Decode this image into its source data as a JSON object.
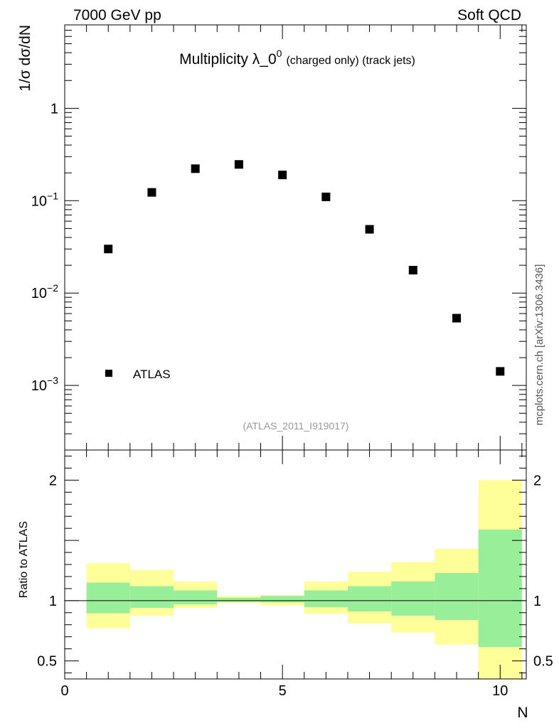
{
  "header": {
    "left_label": "7000 GeV pp",
    "right_label": "Soft QCD"
  },
  "side_label": "mcplots.cern.ch [arXiv:1306.3436]",
  "chart_data": [
    {
      "type": "scatter",
      "title_main": "Multiplicity λ_0",
      "title_sup": "0",
      "title_suffix": "(charged only) (track jets)",
      "ylabel": "1/σ dσ/dN",
      "analysis_id": "(ATLAS_2011_I919017)",
      "yscale": "log",
      "xlim": [
        0,
        10.6
      ],
      "ylim": [
        0.0002,
        8
      ],
      "y_ticks": [
        {
          "value": 0.001,
          "base": "10",
          "exp": "−3"
        },
        {
          "value": 0.01,
          "base": "10",
          "exp": "−2"
        },
        {
          "value": 0.1,
          "base": "10",
          "exp": "−1"
        },
        {
          "value": 1,
          "base": "1",
          "exp": ""
        }
      ],
      "legend": {
        "placement": "bottom-left",
        "label": "ATLAS"
      },
      "series": [
        {
          "name": "ATLAS",
          "x": [
            1,
            2,
            3,
            4,
            5,
            6,
            7,
            8,
            9,
            10
          ],
          "y": [
            0.03,
            0.123,
            0.222,
            0.247,
            0.19,
            0.11,
            0.049,
            0.0177,
            0.00535,
            0.00142
          ]
        }
      ]
    },
    {
      "type": "area",
      "ylabel": "Ratio to ATLAS",
      "xlabel": "N",
      "xlim": [
        0,
        10.6
      ],
      "ylim": [
        0.35,
        2.25
      ],
      "x_ticks": [
        "0",
        "5",
        "10"
      ],
      "y_ticks": [
        "0.5",
        "1",
        "2"
      ],
      "reference_line": 1,
      "bands": {
        "x_edges": [
          0.5,
          1.5,
          2.5,
          3.5,
          4.5,
          5.5,
          6.5,
          7.5,
          8.5,
          9.5,
          10.5
        ],
        "inner_low": [
          0.895,
          0.94,
          0.97,
          0.99,
          0.985,
          0.945,
          0.91,
          0.875,
          0.84,
          0.615
        ],
        "inner_high": [
          1.15,
          1.12,
          1.085,
          1.025,
          1.04,
          1.085,
          1.12,
          1.16,
          1.23,
          1.59
        ],
        "outer_low": [
          0.77,
          0.875,
          0.94,
          0.98,
          0.96,
          0.89,
          0.81,
          0.735,
          0.635,
          0.35
        ],
        "outer_high": [
          1.31,
          1.255,
          1.16,
          1.04,
          1.045,
          1.16,
          1.24,
          1.32,
          1.43,
          2.0
        ],
        "inner_color": "#99ee99",
        "outer_color": "#ffff99"
      }
    }
  ]
}
